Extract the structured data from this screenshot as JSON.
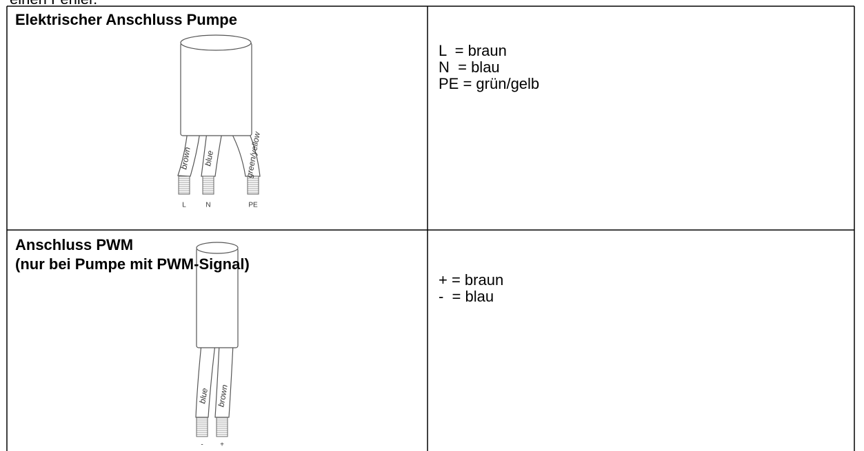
{
  "intro": "einen Fehler.",
  "table": {
    "rows": [
      {
        "title": [
          "Elektrischer Anschluss Pumpe"
        ],
        "diagram": {
          "wires": [
            "brown",
            "blue",
            "green/yellow"
          ],
          "terminals": [
            "L",
            "N",
            "PE"
          ]
        },
        "legend": [
          "L  = braun",
          "N  = blau",
          "PE = grün/gelb"
        ]
      },
      {
        "title": [
          "Anschluss PWM",
          "(nur bei Pumpe mit PWM-Signal)"
        ],
        "diagram": {
          "wires": [
            "blue",
            "brown"
          ],
          "terminals": [
            "-",
            "+"
          ]
        },
        "legend": [
          "+ = braun",
          "-  = blau"
        ]
      }
    ]
  }
}
